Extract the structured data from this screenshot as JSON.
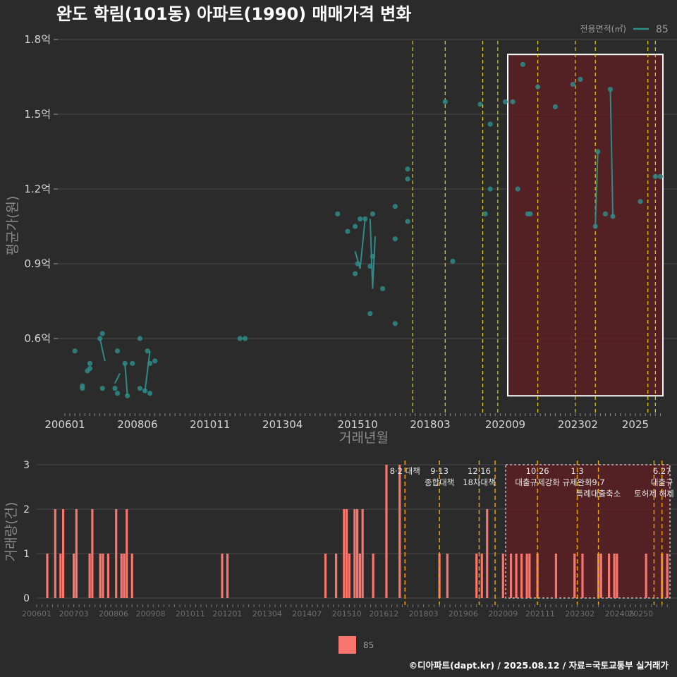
{
  "title": "완도 학림(101동) 아파트(1990) 매매가격 변화",
  "caption": "©디아파트(dapt.kr) / 2025.08.12 / 자료=국토교통부 실거래가",
  "colors": {
    "background": "#2b2b2c",
    "line": "#2e8b88",
    "bar": "#f8766d",
    "policy_line_top": "#e6d400",
    "policy_line_bottom": "#f2a900",
    "highlight_fill": "#5a1f22",
    "highlight_border": "#ffffff",
    "grid": "#4a4a4a"
  },
  "chart_data": [
    {
      "type": "line",
      "name": "price",
      "xlabel": "거래년월",
      "ylabel": "평균가(원)",
      "x_ticks": [
        "200601",
        "200806",
        "201011",
        "201304",
        "201510",
        "201803",
        "202009",
        "202302",
        "2025"
      ],
      "y_ticks": [
        "0.6억",
        "0.9억",
        "1.2억",
        "1.5억",
        "1.8억"
      ],
      "ylim": [
        0.3,
        1.8
      ],
      "legend": {
        "title": "전용면적(㎡)",
        "label": "85"
      },
      "highlight_range": [
        "2020-10",
        "2025-12"
      ],
      "highlight_y": [
        0.37,
        1.74
      ],
      "policy_dates": [
        "2017-08",
        "2018-09",
        "2019-12",
        "2020-06",
        "2021-10",
        "2023-01",
        "2023-09",
        "2025-06",
        "2025-09"
      ],
      "points": [
        [
          "2006-05",
          0.55
        ],
        [
          "2006-08",
          0.41
        ],
        [
          "2006-08",
          0.4
        ],
        [
          "2006-10",
          0.47
        ],
        [
          "2006-11",
          0.48
        ],
        [
          "2006-11",
          0.5
        ],
        [
          "2007-03",
          0.6
        ],
        [
          "2007-04",
          0.62
        ],
        [
          "2007-04",
          0.4
        ],
        [
          "2007-09",
          0.4
        ],
        [
          "2007-10",
          0.55
        ],
        [
          "2007-10",
          0.38
        ],
        [
          "2008-01",
          0.5
        ],
        [
          "2008-02",
          0.37
        ],
        [
          "2008-04",
          0.5
        ],
        [
          "2008-07",
          0.6
        ],
        [
          "2008-07",
          0.4
        ],
        [
          "2008-09",
          0.39
        ],
        [
          "2008-10",
          0.55
        ],
        [
          "2008-11",
          0.38
        ],
        [
          "2008-11",
          0.5
        ],
        [
          "2009-01",
          0.51
        ],
        [
          "2011-11",
          0.6
        ],
        [
          "2012-01",
          0.6
        ],
        [
          "2015-02",
          1.1
        ],
        [
          "2015-06",
          1.03
        ],
        [
          "2015-09",
          1.05
        ],
        [
          "2015-09",
          0.86
        ],
        [
          "2015-10",
          0.9
        ],
        [
          "2015-11",
          1.08
        ],
        [
          "2016-01",
          1.08
        ],
        [
          "2016-03",
          0.7
        ],
        [
          "2016-03",
          0.89
        ],
        [
          "2016-04",
          1.1
        ],
        [
          "2016-04",
          0.93
        ],
        [
          "2016-08",
          0.8
        ],
        [
          "2017-01",
          1.13
        ],
        [
          "2017-01",
          1.0
        ],
        [
          "2017-01",
          0.66
        ],
        [
          "2017-06",
          1.07
        ],
        [
          "2017-06",
          1.28
        ],
        [
          "2017-06",
          1.24
        ],
        [
          "2018-09",
          1.55
        ],
        [
          "2018-12",
          0.91
        ],
        [
          "2019-11",
          1.54
        ],
        [
          "2020-01",
          1.1
        ],
        [
          "2020-03",
          1.46
        ],
        [
          "2020-03",
          1.2
        ],
        [
          "2020-09",
          1.55
        ],
        [
          "2020-12",
          1.55
        ],
        [
          "2021-02",
          1.2
        ],
        [
          "2021-04",
          1.7
        ],
        [
          "2021-06",
          1.1
        ],
        [
          "2021-07",
          1.1
        ],
        [
          "2021-10",
          1.61
        ],
        [
          "2022-05",
          1.53
        ],
        [
          "2022-12",
          1.62
        ],
        [
          "2023-03",
          1.64
        ],
        [
          "2023-09",
          1.05
        ],
        [
          "2023-10",
          1.35
        ],
        [
          "2024-01",
          1.1
        ],
        [
          "2024-03",
          1.6
        ],
        [
          "2024-04",
          1.09
        ],
        [
          "2025-03",
          1.15
        ],
        [
          "2025-09",
          1.25
        ],
        [
          "2025-11",
          1.25
        ]
      ],
      "segments": [
        [
          [
            "2007-03",
            0.6
          ],
          [
            "2007-05",
            0.51
          ]
        ],
        [
          [
            "2007-09",
            0.42
          ],
          [
            "2007-11",
            0.46
          ]
        ],
        [
          [
            "2008-01",
            0.5
          ],
          [
            "2008-02",
            0.37
          ]
        ],
        [
          [
            "2008-09",
            0.39
          ],
          [
            "2008-11",
            0.55
          ]
        ],
        [
          [
            "2015-09",
            0.95
          ],
          [
            "2015-11",
            0.88
          ]
        ],
        [
          [
            "2015-11",
            0.88
          ],
          [
            "2016-01",
            1.08
          ]
        ],
        [
          [
            "2016-03",
            1.08
          ],
          [
            "2016-04",
            0.8
          ]
        ],
        [
          [
            "2016-04",
            0.8
          ],
          [
            "2016-05",
            1.01
          ]
        ],
        [
          [
            "2023-09",
            1.05
          ],
          [
            "2023-10",
            1.35
          ]
        ],
        [
          [
            "2024-03",
            1.6
          ],
          [
            "2024-04",
            1.09
          ]
        ]
      ]
    },
    {
      "type": "bar",
      "name": "volume",
      "ylabel": "거래량(건)",
      "ylim": [
        0,
        3
      ],
      "y_ticks": [
        "0",
        "1",
        "2",
        "3"
      ],
      "x_ticks": [
        "200601",
        "200703",
        "200806",
        "200908",
        "201011",
        "201201",
        "201304",
        "201407",
        "201510",
        "201612",
        "201803",
        "201906",
        "202009",
        "202111",
        "202302",
        "202405",
        "20250"
      ],
      "legend_label": "85",
      "highlight_range": [
        "2020-10",
        "2025-12"
      ],
      "policy_dates": [
        "2017-08",
        "2018-09",
        "2019-12",
        "2020-06",
        "2021-10",
        "2023-01",
        "2023-09",
        "2025-06",
        "2025-09"
      ],
      "annotations": [
        {
          "date": "2017-08",
          "lines": [
            "8·2 대책"
          ]
        },
        {
          "date": "2018-09",
          "lines": [
            "9·13",
            "종합대책"
          ]
        },
        {
          "date": "2019-12",
          "lines": [
            "12·16",
            "18차대책"
          ]
        },
        {
          "date": "2021-10",
          "lines": [
            "10.26",
            "대출규제강화"
          ]
        },
        {
          "date": "2023-01",
          "lines": [
            "1.3",
            "규제완화"
          ]
        },
        {
          "date": "2023-09",
          "lines": [
            "",
            "9.7",
            "특례대출축소"
          ]
        },
        {
          "date": "2025-06",
          "lines": [
            "",
            "",
            "토허제 해제"
          ]
        },
        {
          "date": "2025-09",
          "lines": [
            "6.27",
            "대출규"
          ]
        }
      ],
      "bars": [
        [
          "2006-05",
          1
        ],
        [
          "2006-08",
          2
        ],
        [
          "2006-10",
          1
        ],
        [
          "2006-11",
          2
        ],
        [
          "2007-03",
          1
        ],
        [
          "2007-04",
          2
        ],
        [
          "2007-09",
          1
        ],
        [
          "2007-10",
          2
        ],
        [
          "2008-01",
          1
        ],
        [
          "2008-02",
          1
        ],
        [
          "2008-04",
          1
        ],
        [
          "2008-07",
          2
        ],
        [
          "2008-09",
          1
        ],
        [
          "2008-10",
          1
        ],
        [
          "2008-11",
          2
        ],
        [
          "2009-01",
          1
        ],
        [
          "2011-11",
          1
        ],
        [
          "2012-01",
          1
        ],
        [
          "2015-02",
          1
        ],
        [
          "2015-06",
          1
        ],
        [
          "2015-09",
          2
        ],
        [
          "2015-10",
          2
        ],
        [
          "2015-11",
          1
        ],
        [
          "2016-01",
          2
        ],
        [
          "2016-02",
          2
        ],
        [
          "2016-03",
          1
        ],
        [
          "2016-04",
          2
        ],
        [
          "2016-08",
          1
        ],
        [
          "2017-01",
          3
        ],
        [
          "2017-06",
          3
        ],
        [
          "2018-09",
          1
        ],
        [
          "2018-12",
          1
        ],
        [
          "2019-11",
          1
        ],
        [
          "2020-01",
          1
        ],
        [
          "2020-03",
          2
        ],
        [
          "2020-09",
          1
        ],
        [
          "2020-12",
          1
        ],
        [
          "2021-02",
          1
        ],
        [
          "2021-04",
          1
        ],
        [
          "2021-06",
          1
        ],
        [
          "2021-07",
          1
        ],
        [
          "2021-10",
          1
        ],
        [
          "2022-05",
          1
        ],
        [
          "2022-12",
          1
        ],
        [
          "2023-03",
          1
        ],
        [
          "2023-09",
          1
        ],
        [
          "2023-10",
          1
        ],
        [
          "2024-01",
          1
        ],
        [
          "2024-03",
          1
        ],
        [
          "2024-04",
          1
        ],
        [
          "2025-03",
          1
        ],
        [
          "2025-09",
          1
        ],
        [
          "2025-11",
          1
        ]
      ]
    }
  ]
}
